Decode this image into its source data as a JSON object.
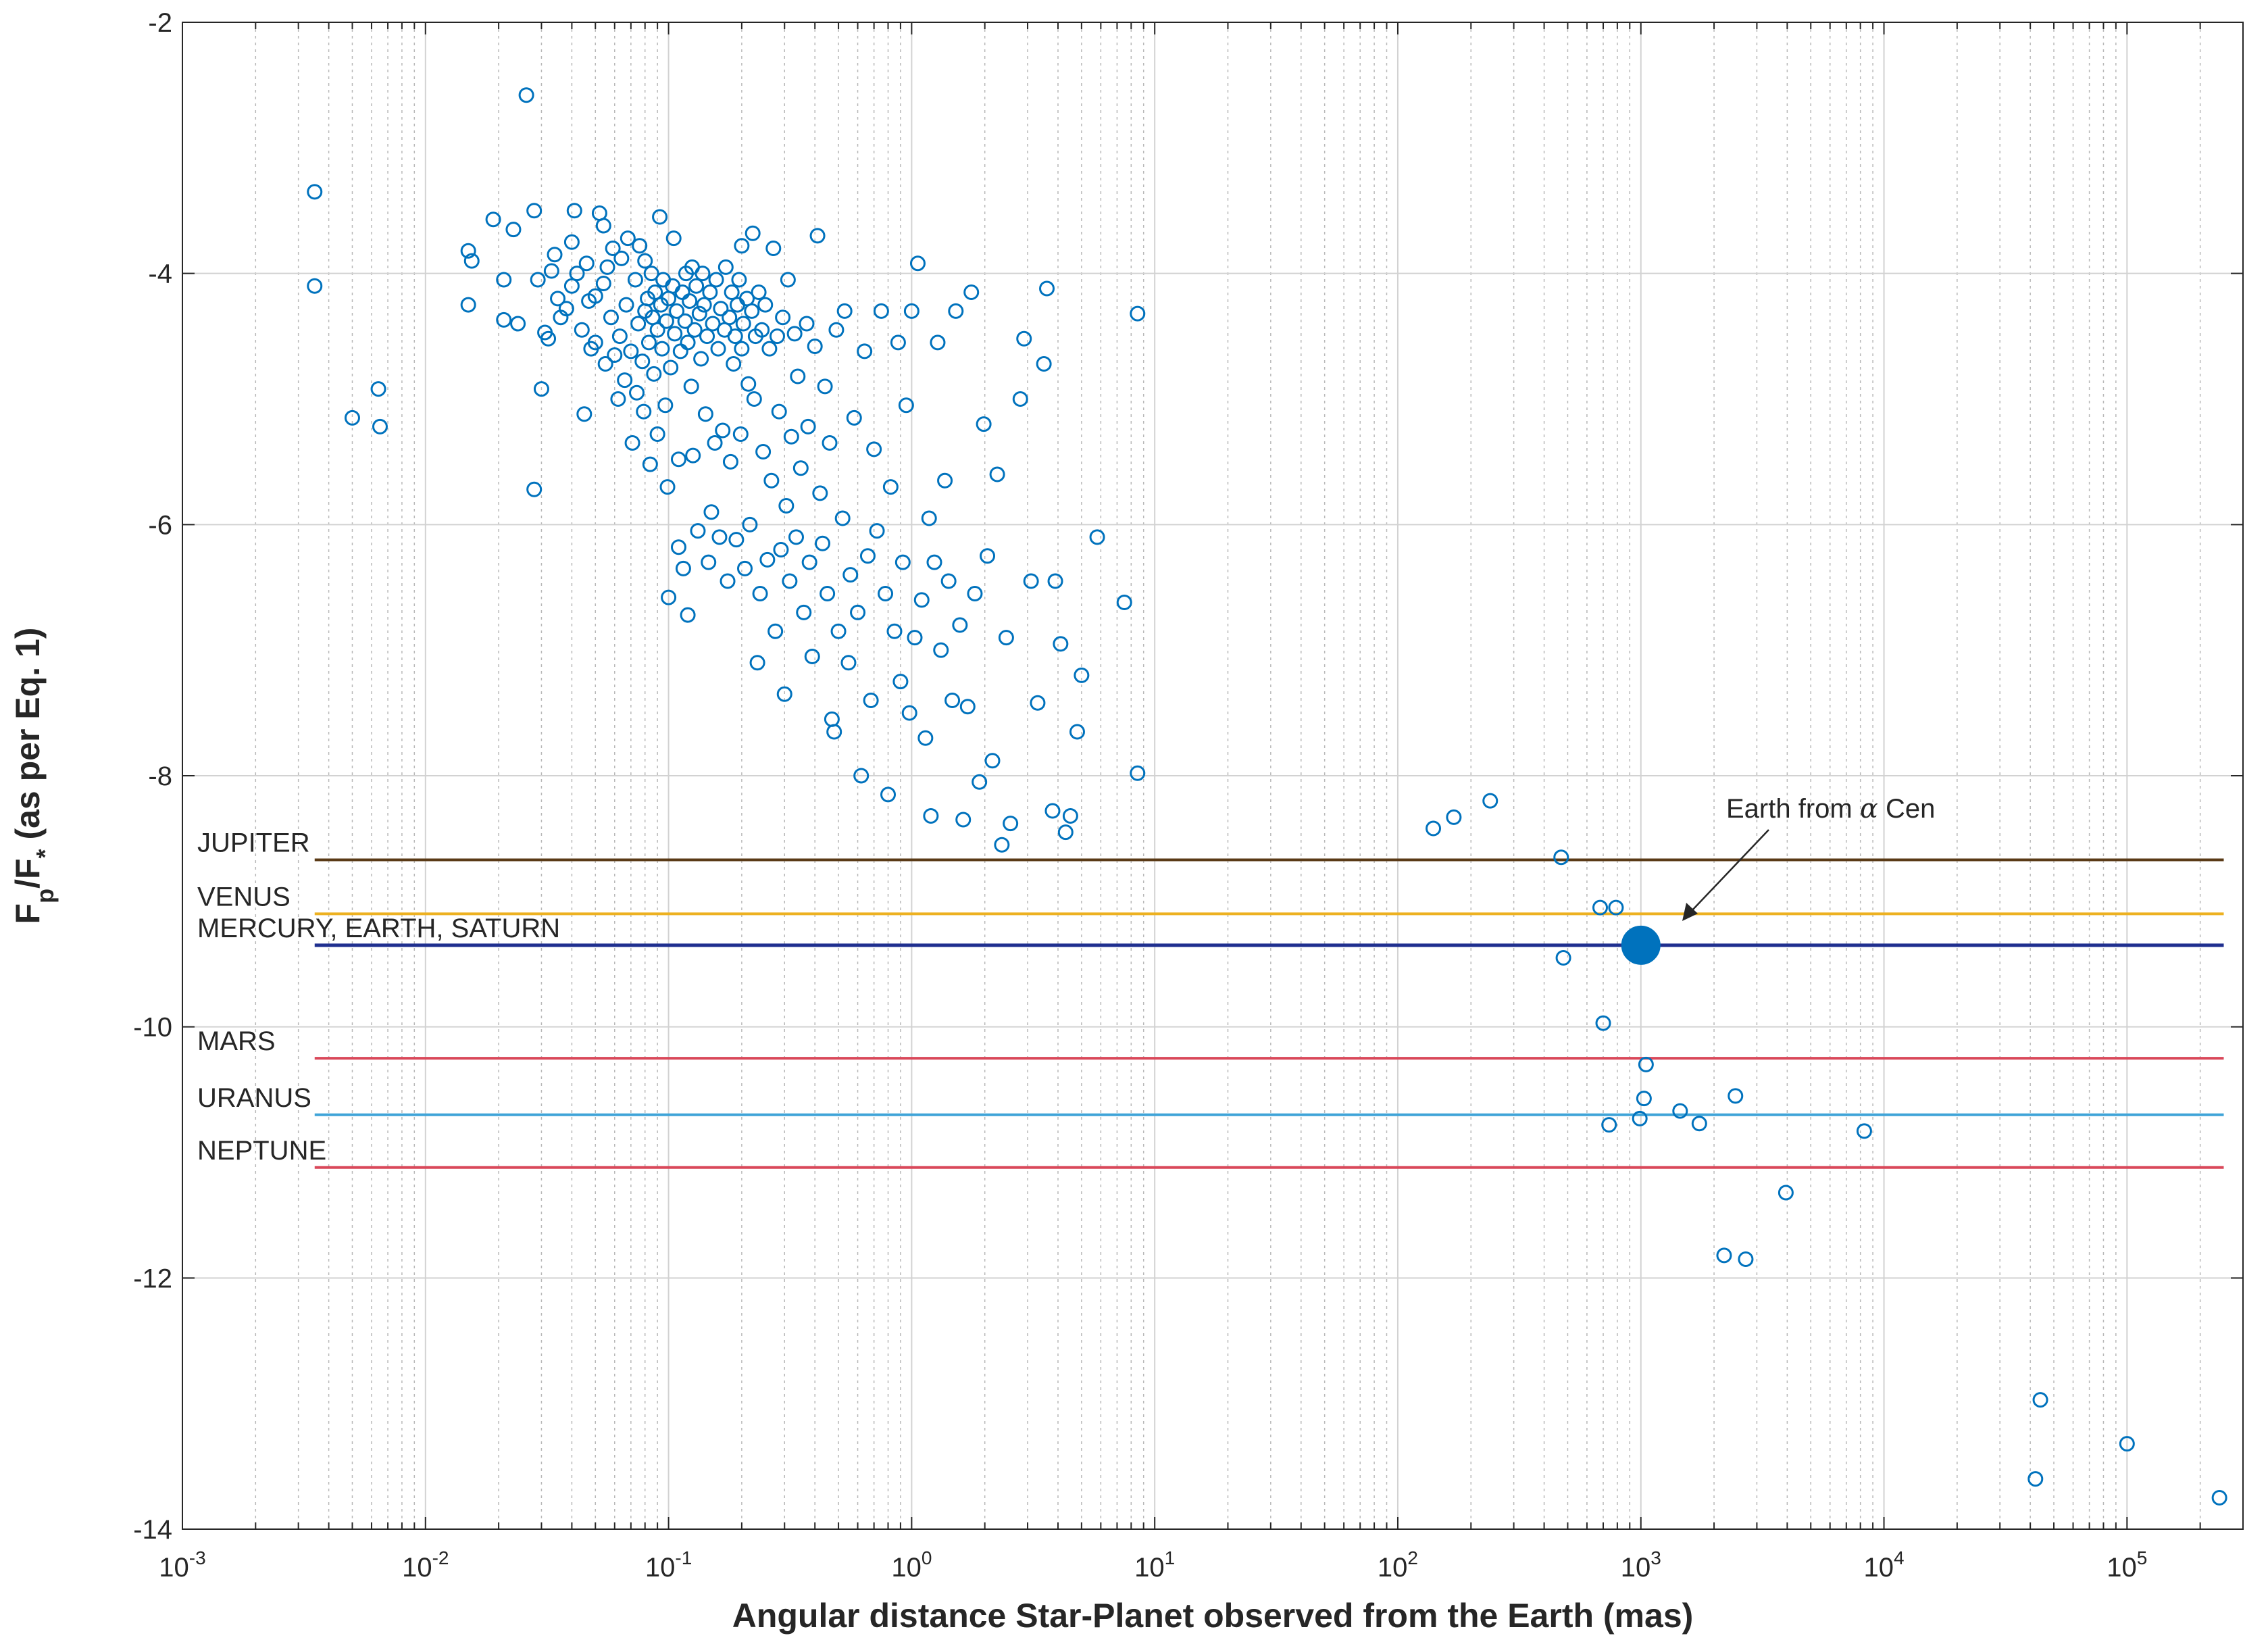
{
  "chart_data": {
    "type": "scatter",
    "xlabel": "Angular distance Star-Planet observed from the Earth (mas)",
    "ylabel": "F_p/F_* (as per Eq. 1)",
    "ylabel_parts": {
      "main1": "F",
      "sub1": "p",
      "main2": "/F",
      "sub2": "*",
      "rest": " (as per Eq. 1)"
    },
    "x_scale": "log",
    "xlim": [
      0.001,
      300000
    ],
    "ylim": [
      -14,
      -2
    ],
    "x_ticks": [
      {
        "value": 0.001,
        "base": "10",
        "exp": "-3"
      },
      {
        "value": 0.01,
        "base": "10",
        "exp": "-2"
      },
      {
        "value": 0.1,
        "base": "10",
        "exp": "-1"
      },
      {
        "value": 1,
        "base": "10",
        "exp": "0"
      },
      {
        "value": 10,
        "base": "10",
        "exp": "1"
      },
      {
        "value": 100,
        "base": "10",
        "exp": "2"
      },
      {
        "value": 1000,
        "base": "10",
        "exp": "3"
      },
      {
        "value": 10000,
        "base": "10",
        "exp": "4"
      },
      {
        "value": 100000,
        "base": "10",
        "exp": "5"
      }
    ],
    "y_ticks": [
      "-2",
      "-4",
      "-6",
      "-8",
      "-10",
      "-12",
      "-14"
    ],
    "grid": true,
    "minor_grid_x": true,
    "marker_color": "#0072bd",
    "reference_lines": [
      {
        "label": "JUPITER",
        "y": -8.67,
        "color": "#5a3a16",
        "x_start": 0.0035,
        "x_end": 250000
      },
      {
        "label": "VENUS",
        "y": -9.1,
        "color": "#edb120",
        "x_start": 0.0035,
        "x_end": 250000
      },
      {
        "label": "MERCURY, EARTH, SATURN",
        "y": -9.35,
        "color": "#1f2f8f",
        "x_start": 0.0035,
        "x_end": 250000
      },
      {
        "label": "MARS",
        "y": -10.25,
        "color": "#d9485a",
        "x_start": 0.0035,
        "x_end": 250000
      },
      {
        "label": "URANUS",
        "y": -10.7,
        "color": "#3fa4d8",
        "x_start": 0.0035,
        "x_end": 250000
      },
      {
        "label": "NEPTUNE",
        "y": -11.12,
        "color": "#d9485a",
        "x_start": 0.0035,
        "x_end": 250000
      }
    ],
    "highlight_point": {
      "x": 1000,
      "y": -9.35,
      "color": "#0072bd"
    },
    "annotation": {
      "text": "Earth from ",
      "symbol": "α",
      "suffix": " Cen"
    },
    "points": [
      [
        0.0035,
        -3.35
      ],
      [
        0.0035,
        -4.1
      ],
      [
        0.005,
        -5.15
      ],
      [
        0.0064,
        -4.92
      ],
      [
        0.0065,
        -5.22
      ],
      [
        0.015,
        -4.25
      ],
      [
        0.015,
        -3.82
      ],
      [
        0.0155,
        -3.9
      ],
      [
        0.019,
        -3.57
      ],
      [
        0.021,
        -4.05
      ],
      [
        0.021,
        -4.37
      ],
      [
        0.023,
        -3.65
      ],
      [
        0.024,
        -4.4
      ],
      [
        0.026,
        -2.58
      ],
      [
        0.028,
        -3.5
      ],
      [
        0.028,
        -5.72
      ],
      [
        0.029,
        -4.05
      ],
      [
        0.03,
        -4.92
      ],
      [
        0.031,
        -4.47
      ],
      [
        0.032,
        -4.52
      ],
      [
        0.033,
        -3.98
      ],
      [
        0.034,
        -3.85
      ],
      [
        0.035,
        -4.2
      ],
      [
        0.036,
        -4.35
      ],
      [
        0.038,
        -4.28
      ],
      [
        0.04,
        -4.1
      ],
      [
        0.04,
        -3.75
      ],
      [
        0.041,
        -3.5
      ],
      [
        0.042,
        -4.0
      ],
      [
        0.044,
        -4.45
      ],
      [
        0.045,
        -5.12
      ],
      [
        0.046,
        -3.92
      ],
      [
        0.047,
        -4.22
      ],
      [
        0.048,
        -4.6
      ],
      [
        0.05,
        -4.18
      ],
      [
        0.05,
        -4.55
      ],
      [
        0.052,
        -3.52
      ],
      [
        0.054,
        -4.08
      ],
      [
        0.054,
        -3.62
      ],
      [
        0.055,
        -4.72
      ],
      [
        0.056,
        -3.95
      ],
      [
        0.058,
        -4.35
      ],
      [
        0.059,
        -3.8
      ],
      [
        0.06,
        -4.65
      ],
      [
        0.062,
        -5.0
      ],
      [
        0.063,
        -4.5
      ],
      [
        0.064,
        -3.88
      ],
      [
        0.066,
        -4.85
      ],
      [
        0.067,
        -4.25
      ],
      [
        0.068,
        -3.72
      ],
      [
        0.07,
        -4.62
      ],
      [
        0.071,
        -5.35
      ],
      [
        0.073,
        -4.05
      ],
      [
        0.074,
        -4.95
      ],
      [
        0.075,
        -4.4
      ],
      [
        0.076,
        -3.78
      ],
      [
        0.078,
        -4.7
      ],
      [
        0.079,
        -5.1
      ],
      [
        0.08,
        -4.3
      ],
      [
        0.08,
        -3.9
      ],
      [
        0.082,
        -4.2
      ],
      [
        0.083,
        -4.55
      ],
      [
        0.084,
        -5.52
      ],
      [
        0.085,
        -4.0
      ],
      [
        0.086,
        -4.35
      ],
      [
        0.087,
        -4.8
      ],
      [
        0.088,
        -4.15
      ],
      [
        0.09,
        -4.45
      ],
      [
        0.09,
        -5.28
      ],
      [
        0.092,
        -3.55
      ],
      [
        0.093,
        -4.25
      ],
      [
        0.094,
        -4.6
      ],
      [
        0.095,
        -4.05
      ],
      [
        0.097,
        -5.05
      ],
      [
        0.098,
        -4.38
      ],
      [
        0.099,
        -5.7
      ],
      [
        0.1,
        -4.2
      ],
      [
        0.1,
        -6.58
      ],
      [
        0.102,
        -4.75
      ],
      [
        0.104,
        -4.1
      ],
      [
        0.105,
        -3.72
      ],
      [
        0.106,
        -4.48
      ],
      [
        0.108,
        -4.3
      ],
      [
        0.11,
        -6.18
      ],
      [
        0.11,
        -5.48
      ],
      [
        0.112,
        -4.62
      ],
      [
        0.114,
        -4.15
      ],
      [
        0.115,
        -6.35
      ],
      [
        0.117,
        -4.38
      ],
      [
        0.118,
        -4.0
      ],
      [
        0.12,
        -4.55
      ],
      [
        0.12,
        -6.72
      ],
      [
        0.122,
        -4.22
      ],
      [
        0.124,
        -4.9
      ],
      [
        0.125,
        -3.95
      ],
      [
        0.126,
        -5.45
      ],
      [
        0.128,
        -4.45
      ],
      [
        0.13,
        -4.1
      ],
      [
        0.132,
        -6.05
      ],
      [
        0.134,
        -4.32
      ],
      [
        0.136,
        -4.68
      ],
      [
        0.138,
        -4.0
      ],
      [
        0.14,
        -4.25
      ],
      [
        0.142,
        -5.12
      ],
      [
        0.144,
        -4.5
      ],
      [
        0.146,
        -6.3
      ],
      [
        0.148,
        -4.15
      ],
      [
        0.15,
        -5.9
      ],
      [
        0.152,
        -4.4
      ],
      [
        0.155,
        -5.35
      ],
      [
        0.157,
        -4.05
      ],
      [
        0.16,
        -4.6
      ],
      [
        0.162,
        -6.1
      ],
      [
        0.164,
        -4.28
      ],
      [
        0.167,
        -5.25
      ],
      [
        0.17,
        -4.45
      ],
      [
        0.172,
        -3.95
      ],
      [
        0.175,
        -6.45
      ],
      [
        0.178,
        -4.35
      ],
      [
        0.18,
        -5.5
      ],
      [
        0.182,
        -4.15
      ],
      [
        0.185,
        -4.72
      ],
      [
        0.188,
        -4.5
      ],
      [
        0.19,
        -6.12
      ],
      [
        0.192,
        -4.25
      ],
      [
        0.195,
        -4.05
      ],
      [
        0.198,
        -5.28
      ],
      [
        0.2,
        -4.6
      ],
      [
        0.2,
        -3.78
      ],
      [
        0.203,
        -4.4
      ],
      [
        0.206,
        -6.35
      ],
      [
        0.21,
        -4.2
      ],
      [
        0.213,
        -4.88
      ],
      [
        0.216,
        -6.0
      ],
      [
        0.22,
        -4.3
      ],
      [
        0.222,
        -3.68
      ],
      [
        0.225,
        -5.0
      ],
      [
        0.228,
        -4.5
      ],
      [
        0.232,
        -7.1
      ],
      [
        0.235,
        -4.15
      ],
      [
        0.238,
        -6.55
      ],
      [
        0.242,
        -4.45
      ],
      [
        0.245,
        -5.42
      ],
      [
        0.25,
        -4.25
      ],
      [
        0.255,
        -6.28
      ],
      [
        0.26,
        -4.6
      ],
      [
        0.265,
        -5.65
      ],
      [
        0.27,
        -3.8
      ],
      [
        0.275,
        -6.85
      ],
      [
        0.28,
        -4.5
      ],
      [
        0.285,
        -5.1
      ],
      [
        0.29,
        -6.2
      ],
      [
        0.295,
        -4.35
      ],
      [
        0.3,
        -7.35
      ],
      [
        0.305,
        -5.85
      ],
      [
        0.31,
        -4.05
      ],
      [
        0.315,
        -6.45
      ],
      [
        0.32,
        -5.3
      ],
      [
        0.33,
        -4.48
      ],
      [
        0.335,
        -6.1
      ],
      [
        0.34,
        -4.82
      ],
      [
        0.35,
        -5.55
      ],
      [
        0.36,
        -6.7
      ],
      [
        0.37,
        -4.4
      ],
      [
        0.375,
        -5.22
      ],
      [
        0.38,
        -6.3
      ],
      [
        0.39,
        -7.05
      ],
      [
        0.4,
        -4.58
      ],
      [
        0.41,
        -3.7
      ],
      [
        0.42,
        -5.75
      ],
      [
        0.43,
        -6.15
      ],
      [
        0.44,
        -4.9
      ],
      [
        0.45,
        -6.55
      ],
      [
        0.46,
        -5.35
      ],
      [
        0.47,
        -7.55
      ],
      [
        0.48,
        -7.65
      ],
      [
        0.49,
        -4.45
      ],
      [
        0.5,
        -6.85
      ],
      [
        0.52,
        -5.95
      ],
      [
        0.53,
        -4.3
      ],
      [
        0.55,
        -7.1
      ],
      [
        0.56,
        -6.4
      ],
      [
        0.58,
        -5.15
      ],
      [
        0.6,
        -6.7
      ],
      [
        0.62,
        -8.0
      ],
      [
        0.64,
        -4.62
      ],
      [
        0.66,
        -6.25
      ],
      [
        0.68,
        -7.4
      ],
      [
        0.7,
        -5.4
      ],
      [
        0.72,
        -6.05
      ],
      [
        0.75,
        -4.3
      ],
      [
        0.78,
        -6.55
      ],
      [
        0.8,
        -8.15
      ],
      [
        0.82,
        -5.7
      ],
      [
        0.85,
        -6.85
      ],
      [
        0.88,
        -4.55
      ],
      [
        0.9,
        -7.25
      ],
      [
        0.92,
        -6.3
      ],
      [
        0.95,
        -5.05
      ],
      [
        0.98,
        -7.5
      ],
      [
        1.0,
        -4.3
      ],
      [
        1.03,
        -6.9
      ],
      [
        1.06,
        -3.92
      ],
      [
        1.1,
        -6.6
      ],
      [
        1.14,
        -7.7
      ],
      [
        1.18,
        -5.95
      ],
      [
        1.2,
        -8.32
      ],
      [
        1.24,
        -6.3
      ],
      [
        1.28,
        -4.55
      ],
      [
        1.32,
        -7.0
      ],
      [
        1.37,
        -5.65
      ],
      [
        1.42,
        -6.45
      ],
      [
        1.47,
        -7.4
      ],
      [
        1.52,
        -4.3
      ],
      [
        1.58,
        -6.8
      ],
      [
        1.63,
        -8.35
      ],
      [
        1.7,
        -7.45
      ],
      [
        1.76,
        -4.15
      ],
      [
        1.82,
        -6.55
      ],
      [
        1.9,
        -8.05
      ],
      [
        1.98,
        -5.2
      ],
      [
        2.05,
        -6.25
      ],
      [
        2.15,
        -7.88
      ],
      [
        2.25,
        -5.6
      ],
      [
        2.35,
        -8.55
      ],
      [
        2.45,
        -6.9
      ],
      [
        2.55,
        -8.38
      ],
      [
        2.8,
        -5.0
      ],
      [
        2.9,
        -4.52
      ],
      [
        3.1,
        -6.45
      ],
      [
        3.3,
        -7.42
      ],
      [
        3.5,
        -4.72
      ],
      [
        3.6,
        -4.12
      ],
      [
        3.8,
        -8.28
      ],
      [
        3.9,
        -6.45
      ],
      [
        4.1,
        -6.95
      ],
      [
        4.3,
        -8.45
      ],
      [
        4.5,
        -8.32
      ],
      [
        4.8,
        -7.65
      ],
      [
        5.0,
        -7.2
      ],
      [
        5.8,
        -6.1
      ],
      [
        7.5,
        -6.62
      ],
      [
        8.5,
        -4.32
      ],
      [
        8.5,
        -7.98
      ],
      [
        140,
        -8.42
      ],
      [
        170,
        -8.33
      ],
      [
        240,
        -8.2
      ],
      [
        470,
        -8.65
      ],
      [
        480,
        -9.45
      ],
      [
        680,
        -9.05
      ],
      [
        700,
        -9.97
      ],
      [
        740,
        -10.78
      ],
      [
        790,
        -9.05
      ],
      [
        990,
        -10.73
      ],
      [
        1030,
        -10.57
      ],
      [
        1050,
        -10.3
      ],
      [
        1450,
        -10.67
      ],
      [
        1740,
        -10.77
      ],
      [
        2200,
        -11.82
      ],
      [
        2450,
        -10.55
      ],
      [
        2700,
        -11.85
      ],
      [
        3950,
        -11.32
      ],
      [
        8300,
        -10.83
      ],
      [
        42000,
        -13.6
      ],
      [
        44000,
        -12.97
      ],
      [
        100000,
        -13.32
      ],
      [
        240000,
        -13.75
      ]
    ]
  }
}
